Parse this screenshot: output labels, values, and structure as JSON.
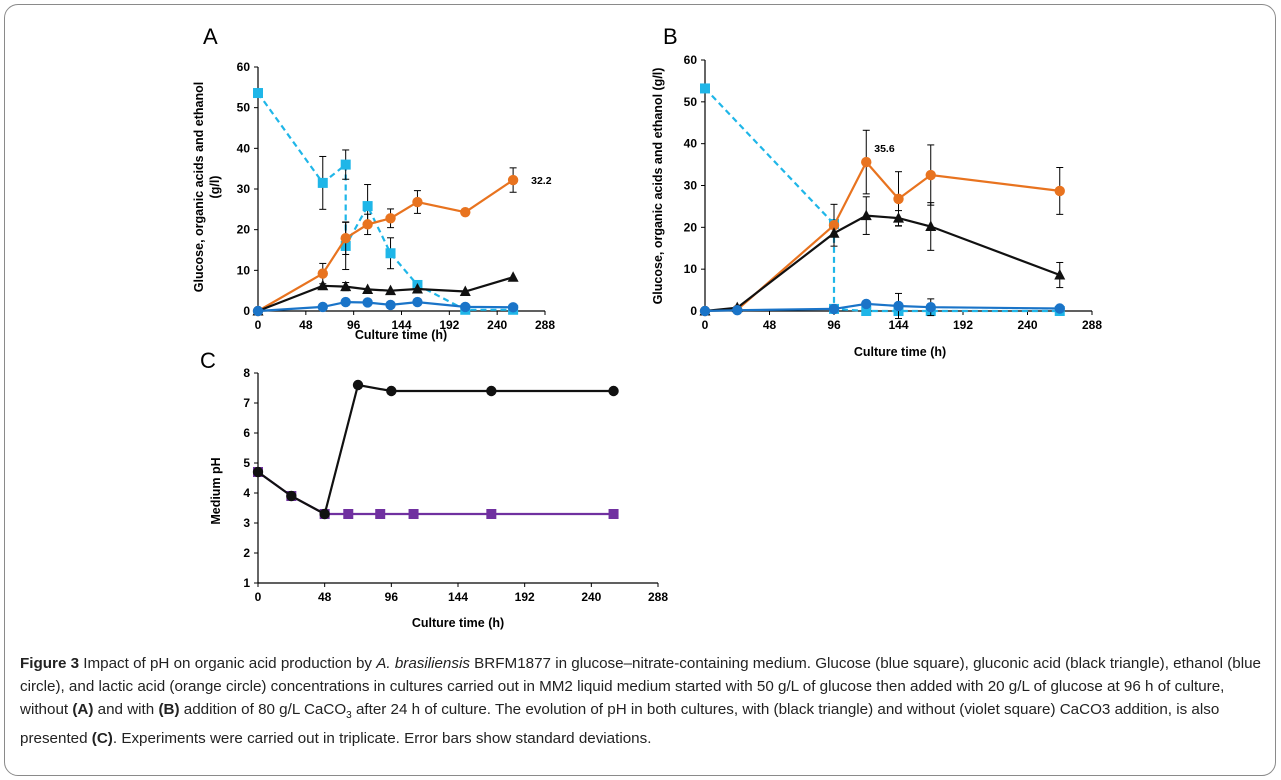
{
  "chart_data": [
    {
      "panel": "A",
      "type": "line",
      "ylabel_line1": "Glucose, organic acids and ethanol",
      "ylabel_line2": "(g/l)",
      "xlabel": "Culture time (h)",
      "xlim": [
        0,
        288
      ],
      "ylim": [
        0,
        60
      ],
      "xticks": [
        0,
        48,
        96,
        144,
        192,
        240,
        288
      ],
      "yticks": [
        0,
        10,
        20,
        30,
        40,
        50,
        60
      ],
      "annotation": "32.2",
      "series": [
        {
          "color": "#1fb6e8",
          "marker": "square",
          "dash": true,
          "x": [
            0,
            65,
            88,
            88,
            110,
            133,
            160,
            208,
            256
          ],
          "y": [
            53.6,
            31.5,
            36,
            16,
            25.8,
            14.2,
            6.4,
            0.3,
            0.3
          ],
          "err": [
            0,
            6.5,
            3.6,
            5.8,
            5.3,
            3.8,
            1,
            0,
            0
          ]
        },
        {
          "color": "#e8731f",
          "marker": "circle",
          "x": [
            0,
            65,
            88,
            110,
            133,
            160,
            208,
            256
          ],
          "y": [
            0,
            9.2,
            17.9,
            21.3,
            22.8,
            26.8,
            24.3,
            32.2
          ],
          "err": [
            0,
            2.5,
            4,
            2.5,
            2.3,
            2.8,
            0,
            3
          ]
        },
        {
          "color": "#111111",
          "marker": "triangle",
          "x": [
            0,
            65,
            88,
            110,
            133,
            160,
            208,
            256
          ],
          "y": [
            0,
            6.2,
            6,
            5.3,
            5,
            5.4,
            4.8,
            8.3
          ],
          "err": [
            0,
            0,
            1,
            0,
            0,
            0,
            0,
            0
          ]
        },
        {
          "color": "#1a74c8",
          "marker": "circle",
          "x": [
            0,
            65,
            88,
            110,
            133,
            160,
            208,
            256
          ],
          "y": [
            0,
            1,
            2.2,
            2.1,
            1.5,
            2.2,
            1,
            0.9
          ],
          "err": [
            0,
            0,
            0,
            0,
            0,
            0,
            0,
            0
          ]
        }
      ]
    },
    {
      "panel": "B",
      "type": "line",
      "ylabel": "Glucose, organic acids and ethanol (g/l)",
      "xlabel": "Culture time (h)",
      "xlim": [
        0,
        288
      ],
      "ylim": [
        0,
        60
      ],
      "xticks": [
        0,
        48,
        96,
        144,
        192,
        240,
        288
      ],
      "yticks": [
        0,
        10,
        20,
        30,
        40,
        50,
        60
      ],
      "annotation": "35.6",
      "series": [
        {
          "color": "#1fb6e8",
          "marker": "square",
          "dash": true,
          "x": [
            0,
            96,
            96,
            120,
            144,
            168,
            264
          ],
          "y": [
            53.2,
            20.8,
            0.5,
            0,
            0,
            0,
            0
          ],
          "err": [
            0,
            0,
            0,
            0,
            0,
            0,
            0
          ]
        },
        {
          "color": "#e8731f",
          "marker": "circle",
          "x": [
            0,
            24,
            96,
            120,
            144,
            168,
            264
          ],
          "y": [
            0,
            0.3,
            20.5,
            35.6,
            26.8,
            32.5,
            28.7
          ],
          "err": [
            0,
            0,
            5,
            7.6,
            6.5,
            7.2,
            5.6
          ]
        },
        {
          "color": "#111111",
          "marker": "triangle",
          "x": [
            0,
            24,
            96,
            120,
            144,
            168,
            264
          ],
          "y": [
            0,
            0.8,
            18.6,
            22.8,
            22.2,
            20.2,
            8.6
          ],
          "err": [
            0,
            0,
            0,
            4.5,
            1.8,
            5.7,
            3
          ]
        },
        {
          "color": "#1a74c8",
          "marker": "circle",
          "x": [
            0,
            24,
            96,
            120,
            144,
            168,
            264
          ],
          "y": [
            0,
            0.2,
            0.5,
            1.7,
            1.2,
            0.9,
            0.6
          ],
          "err": [
            0,
            0,
            0,
            0,
            3,
            2,
            0
          ]
        }
      ]
    },
    {
      "panel": "C",
      "type": "line",
      "ylabel": "Medium pH",
      "xlabel": "Culture time (h)",
      "xlim": [
        0,
        288
      ],
      "ylim": [
        1,
        8
      ],
      "xticks": [
        0,
        48,
        96,
        144,
        192,
        240,
        288
      ],
      "yticks": [
        1,
        2,
        3,
        4,
        5,
        6,
        7,
        8
      ],
      "series": [
        {
          "color": "#7030a0",
          "marker": "square",
          "x": [
            0,
            24,
            48,
            65,
            88,
            112,
            168,
            256
          ],
          "y": [
            4.7,
            3.9,
            3.3,
            3.3,
            3.3,
            3.3,
            3.3,
            3.3
          ]
        },
        {
          "color": "#111111",
          "marker": "circle",
          "x": [
            0,
            24,
            48,
            72,
            96,
            168,
            256
          ],
          "y": [
            4.7,
            3.9,
            3.3,
            7.6,
            7.4,
            7.4,
            7.4
          ]
        }
      ]
    }
  ],
  "caption": {
    "figure_label": "Figure 3",
    "p1": " Impact of pH on organic acid production by ",
    "species": "A. brasiliensis",
    "p2": " BRFM1877 in glucose–nitrate-containing medium. Glucose (blue square), gluconic acid (black triangle), ethanol (blue circle), and lactic acid (orange circle) concentrations in cultures carried out in MM2 liquid medium started with 50 g/L of glucose then added with 20 g/L of glucose at 96 h of culture, without ",
    "ref_a": "(A)",
    "p3": " and with ",
    "ref_b": "(B)",
    "p4": " addition of 80 g/L CaCO",
    "sub3": "3",
    "p5": " after 24 h of culture. The evolution of pH in both cultures, with (black triangle) and without (violet square) CaCO3 addition, is also presented ",
    "ref_c": "(C)",
    "p6": ". Experiments were carried out in triplicate. Error bars show standard deviations."
  }
}
